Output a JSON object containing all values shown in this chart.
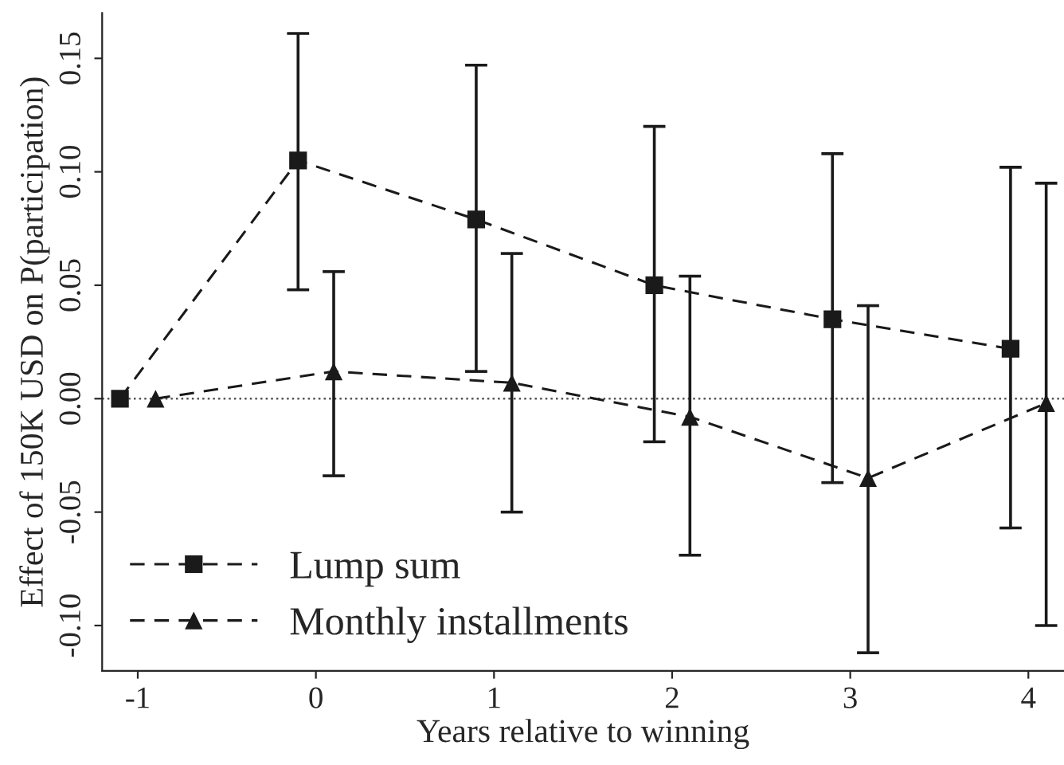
{
  "chart_data": {
    "type": "line",
    "xlabel": "Years relative to winning",
    "ylabel": "Effect of 150K USD on P(participation)",
    "series": [
      {
        "name": "Lump sum",
        "color": "#1a1a1a",
        "marker": "square",
        "line_style": "dashed",
        "x": [
          -1.1,
          -0.1,
          0.9,
          1.9,
          2.9,
          3.9
        ],
        "values": [
          0,
          0.105,
          0.079,
          0.05,
          0.035,
          0.022
        ],
        "errors": [
          null,
          [
            0.048,
            0.161
          ],
          [
            0.012,
            0.147
          ],
          [
            -0.019,
            0.12
          ],
          [
            -0.037,
            0.108
          ],
          [
            -0.057,
            0.102
          ]
        ]
      },
      {
        "name": "Monthly installments",
        "color": "#1a1a1a",
        "marker": "triangle",
        "line_style": "dashed",
        "x": [
          -0.9,
          0.1,
          1.1,
          2.1,
          3.1,
          4.1
        ],
        "values": [
          0,
          0.012,
          0.007,
          -0.008,
          -0.035,
          -0.002
        ],
        "errors": [
          null,
          [
            -0.034,
            0.056
          ],
          [
            -0.05,
            0.064
          ],
          [
            -0.069,
            0.054
          ],
          [
            -0.112,
            0.041
          ],
          [
            -0.1,
            0.095
          ]
        ]
      }
    ],
    "xlim": [
      -1.2,
      4.2
    ],
    "xticks": [
      {
        "value": -1,
        "label": "-1"
      },
      0,
      1,
      2,
      3,
      4
    ],
    "ylim": [
      -0.12,
      0.17
    ],
    "yticks": [
      {
        "value": -0.1,
        "label": "-0.10"
      },
      {
        "value": -0.05,
        "label": "-0.05"
      },
      {
        "value": 0,
        "label": "0.00"
      },
      {
        "value": 0.05,
        "label": "0.05"
      },
      {
        "value": 0.1,
        "label": "0.10"
      },
      {
        "value": 0.15,
        "label": "0.15"
      }
    ],
    "ref_lines": [
      {
        "axis": "y",
        "value": 0,
        "color": "#555555",
        "line_style": "dotted"
      }
    ],
    "legend": "bottom left",
    "grid": false
  }
}
